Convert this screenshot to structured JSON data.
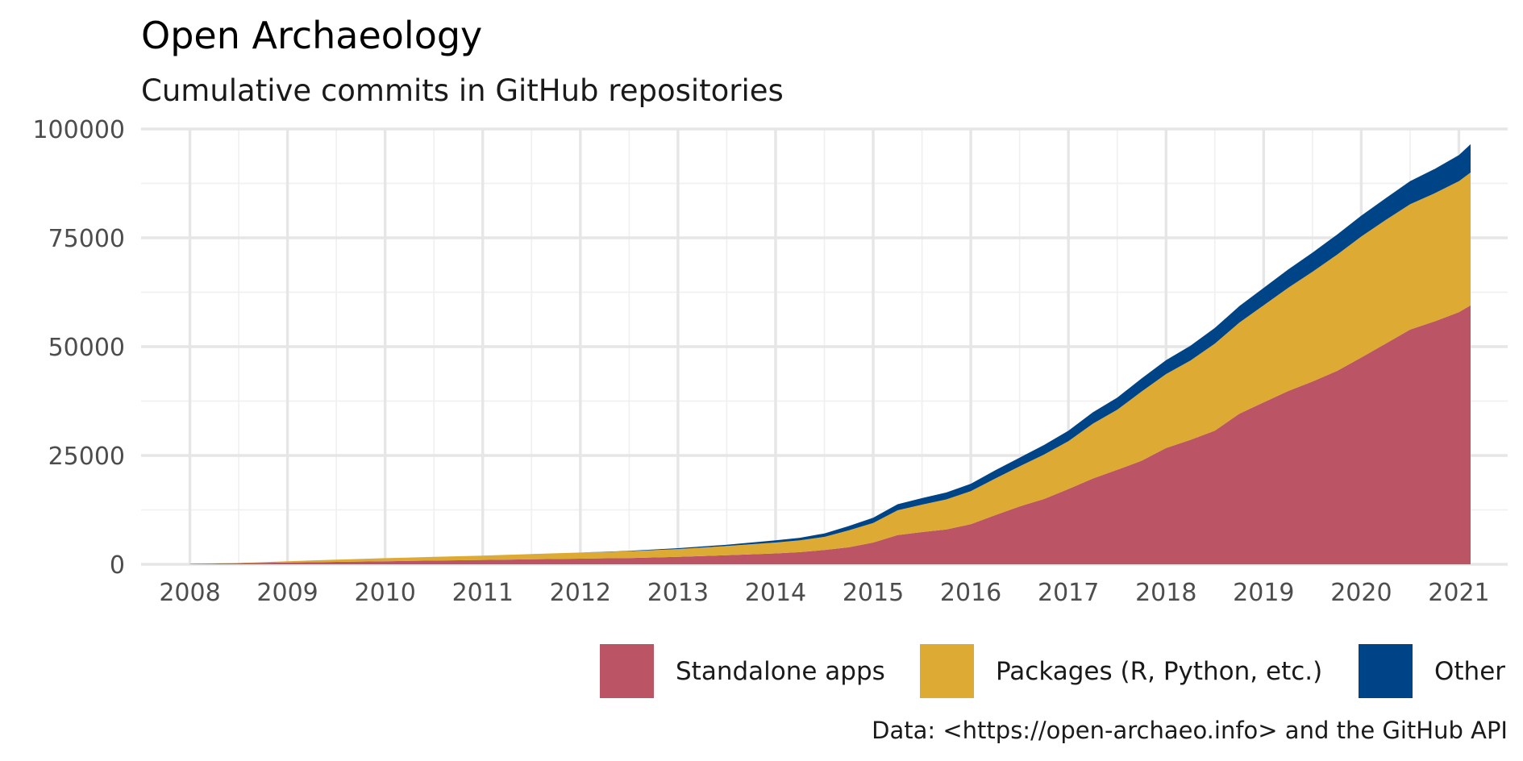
{
  "chart_data": {
    "type": "area",
    "stacked": true,
    "title": "Open Archaeology",
    "subtitle": "Cumulative commits in GitHub repositories",
    "caption": "Data: <https://open-archaeo.info> and the GitHub API",
    "xlabel": "",
    "ylabel": "",
    "xlim": [
      2007.5,
      2021.5
    ],
    "ylim": [
      0,
      100000
    ],
    "x_ticks": [
      "2008",
      "2009",
      "2010",
      "2011",
      "2012",
      "2013",
      "2014",
      "2015",
      "2016",
      "2017",
      "2018",
      "2019",
      "2020",
      "2021"
    ],
    "y_ticks": [
      "0",
      "25000",
      "50000",
      "75000",
      "100000"
    ],
    "grid": true,
    "legend_position": "bottom-right",
    "x": [
      2008.0,
      2008.5,
      2009.0,
      2009.5,
      2010.0,
      2010.5,
      2011.0,
      2011.5,
      2012.0,
      2012.5,
      2013.0,
      2013.5,
      2014.0,
      2014.25,
      2014.5,
      2014.75,
      2015.0,
      2015.25,
      2015.5,
      2015.75,
      2016.0,
      2016.25,
      2016.5,
      2016.75,
      2017.0,
      2017.25,
      2017.5,
      2017.75,
      2018.0,
      2018.25,
      2018.5,
      2018.75,
      2019.0,
      2019.25,
      2019.5,
      2019.75,
      2020.0,
      2020.25,
      2020.5,
      2020.75,
      2021.0,
      2021.12
    ],
    "series": [
      {
        "name": "Standalone apps",
        "color": "#bb5566",
        "values": [
          100,
          250,
          400,
          550,
          700,
          850,
          1000,
          1150,
          1300,
          1450,
          1700,
          2100,
          2500,
          2800,
          3300,
          3900,
          5000,
          6700,
          7400,
          8000,
          9200,
          11300,
          13300,
          15000,
          17300,
          19700,
          21700,
          23800,
          26700,
          28600,
          30700,
          34600,
          37200,
          39800,
          42000,
          44400,
          47500,
          50700,
          53900,
          55800,
          57900,
          59500
        ]
      },
      {
        "name": "Packages (R, Python, etc.)",
        "color": "#ddaa33",
        "values": [
          0,
          50,
          300,
          500,
          700,
          850,
          1000,
          1200,
          1400,
          1550,
          1800,
          2100,
          2500,
          2700,
          3000,
          3900,
          4500,
          5700,
          6300,
          6900,
          7600,
          8400,
          9200,
          10200,
          11000,
          12600,
          13800,
          15900,
          17000,
          18200,
          20000,
          20900,
          22300,
          23700,
          25200,
          26700,
          27800,
          28400,
          28800,
          29400,
          30100,
          30500
        ]
      },
      {
        "name": "Other",
        "color": "#004488",
        "values": [
          0,
          0,
          0,
          0,
          0,
          0,
          0,
          0,
          0,
          100,
          200,
          300,
          500,
          600,
          800,
          1000,
          1200,
          1400,
          1500,
          1600,
          1700,
          1900,
          2000,
          2200,
          2400,
          2600,
          2800,
          3000,
          3200,
          3400,
          3600,
          3800,
          4000,
          4200,
          4400,
          4600,
          4800,
          5000,
          5300,
          5600,
          6000,
          6500
        ]
      }
    ]
  }
}
